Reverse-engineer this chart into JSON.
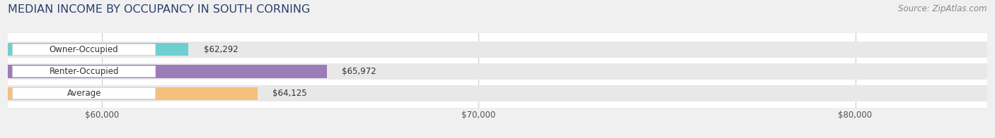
{
  "title": "MEDIAN INCOME BY OCCUPANCY IN SOUTH CORNING",
  "source": "Source: ZipAtlas.com",
  "categories": [
    "Owner-Occupied",
    "Renter-Occupied",
    "Average"
  ],
  "values": [
    62292,
    65972,
    64125
  ],
  "bar_colors": [
    "#6dcfcf",
    "#9b7bb8",
    "#f5c07a"
  ],
  "value_labels": [
    "$62,292",
    "$65,972",
    "$64,125"
  ],
  "xlim_min": 57500,
  "xlim_max": 83500,
  "xticks": [
    60000,
    70000,
    80000
  ],
  "xtick_labels": [
    "$60,000",
    "$70,000",
    "$80,000"
  ],
  "page_bg_color": "#f0f0f0",
  "chart_bg_color": "#ffffff",
  "bar_track_color": "#e8e8e8",
  "title_color": "#2a3f6f",
  "source_color": "#888888",
  "label_bg_color": "#ffffff",
  "label_text_color": "#333333",
  "value_text_color": "#333333",
  "title_fontsize": 11.5,
  "source_fontsize": 8.5,
  "label_fontsize": 8.5,
  "tick_fontsize": 8.5
}
